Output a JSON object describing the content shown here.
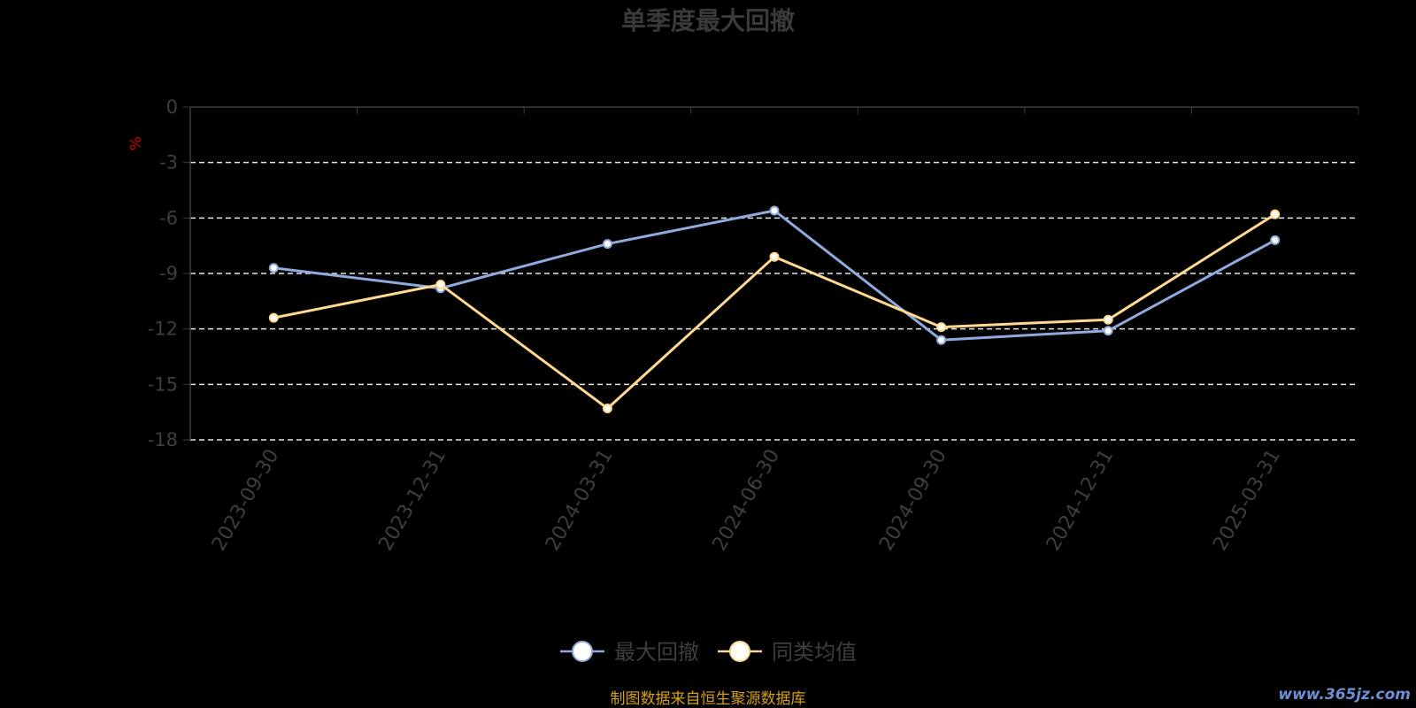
{
  "chart_data": {
    "type": "line",
    "title": "单季度最大回撤",
    "ylabel": "%",
    "xlabel": "",
    "categories": [
      "2023-09-30",
      "2023-12-31",
      "2024-03-31",
      "2024-06-30",
      "2024-09-30",
      "2024-12-31",
      "2025-03-31"
    ],
    "ylim": [
      -18,
      0
    ],
    "yticks": [
      "0",
      "-3",
      "-6",
      "-9",
      "-12",
      "-15",
      "-18"
    ],
    "grid": true,
    "legend_position": "bottom",
    "series": [
      {
        "name": "最大回撤",
        "color": "#8faadc",
        "values": [
          -8.7,
          -9.8,
          -7.4,
          -5.6,
          -12.6,
          -12.1,
          -7.2
        ]
      },
      {
        "name": "同类均值",
        "color": "#ffd98f",
        "values": [
          -11.4,
          -9.6,
          -16.3,
          -8.1,
          -11.9,
          -11.5,
          -5.8
        ]
      }
    ]
  },
  "footer": {
    "source": "制图数据来自恒生聚源数据库",
    "watermark": "www.365jz.com"
  }
}
